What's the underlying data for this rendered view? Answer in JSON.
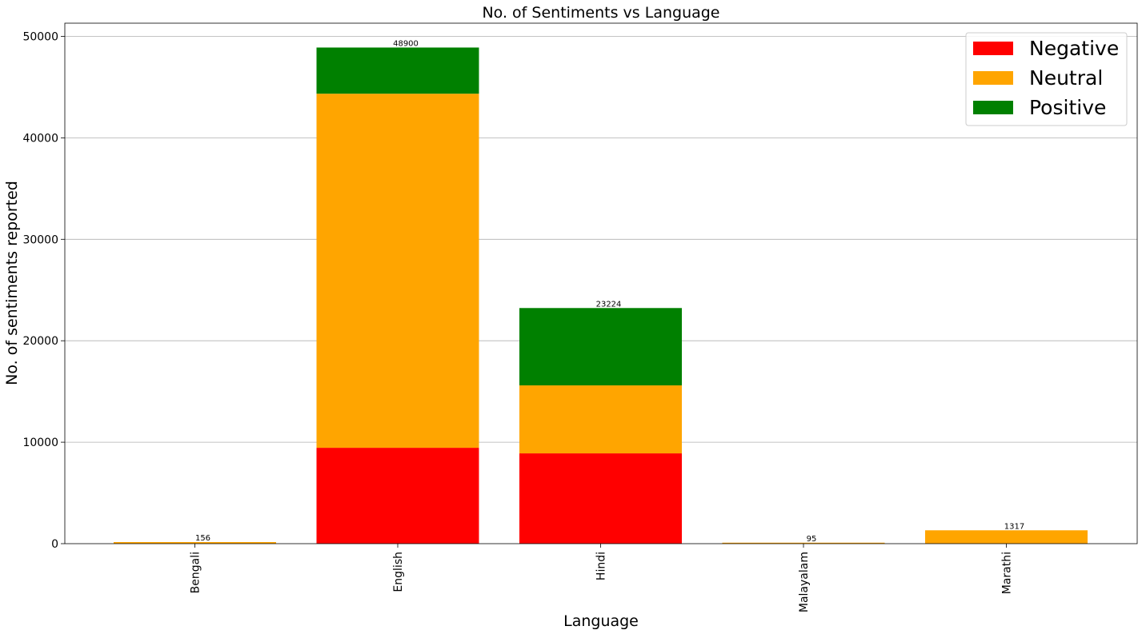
{
  "chart_data": {
    "type": "bar",
    "stacked": true,
    "title": "No. of Sentiments vs Language",
    "xlabel": "Language",
    "ylabel": "No. of sentiments reported",
    "categories": [
      "Bengali",
      "English",
      "Hindi",
      "Malayalam",
      "Marathi"
    ],
    "series": [
      {
        "name": "Negative",
        "color": "#ff0000",
        "values": [
          0,
          9450,
          8900,
          0,
          0
        ]
      },
      {
        "name": "Neutral",
        "color": "#ffa500",
        "values": [
          156,
          34900,
          6700,
          95,
          1317
        ]
      },
      {
        "name": "Positive",
        "color": "#008000",
        "values": [
          0,
          4550,
          7624,
          0,
          0
        ]
      }
    ],
    "totals": [
      156,
      48900,
      23224,
      95,
      1317
    ],
    "total_labels": [
      "156",
      "48900",
      "23224",
      "95",
      "1317"
    ],
    "ylim": [
      0,
      51300
    ],
    "yticks": [
      0,
      10000,
      20000,
      30000,
      40000,
      50000
    ],
    "ytick_labels": [
      "0",
      "10000",
      "20000",
      "30000",
      "40000",
      "50000"
    ],
    "grid": "horizontal",
    "legend_position": "top-right"
  }
}
